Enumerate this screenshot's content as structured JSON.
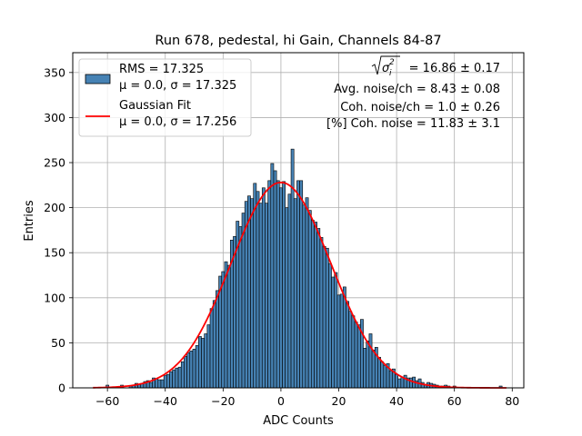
{
  "chart_data": {
    "type": "bar",
    "title": "Run 678, pedestal, hi Gain, Channels 84-87",
    "xlabel": "ADC Counts",
    "ylabel": "Entries",
    "xlim": [
      -72,
      84
    ],
    "ylim": [
      0,
      372
    ],
    "xticks": [
      -60,
      -40,
      -20,
      0,
      20,
      40,
      60,
      80
    ],
    "yticks": [
      0,
      50,
      100,
      150,
      200,
      250,
      300,
      350
    ],
    "grid": true,
    "bin_width": 1,
    "colors": {
      "hist_fill": "#4682b4",
      "hist_edge": "#000000",
      "fit_line": "#ff0000"
    },
    "histogram": {
      "legend_lines": [
        "RMS = 17.325",
        "μ = 0.0, σ = 17.325"
      ],
      "bin_centers": [
        -60,
        -55,
        -52,
        -51,
        -50,
        -49,
        -48,
        -47,
        -46,
        -45,
        -44,
        -43,
        -42,
        -41,
        -40,
        -39,
        -38,
        -37,
        -36,
        -35,
        -34,
        -33,
        -32,
        -31,
        -30,
        -29,
        -28,
        -27,
        -26,
        -25,
        -24,
        -23,
        -22,
        -21,
        -20,
        -19,
        -18,
        -17,
        -16,
        -15,
        -14,
        -13,
        -12,
        -11,
        -10,
        -9,
        -8,
        -7,
        -6,
        -5,
        -4,
        -3,
        -2,
        -1,
        0,
        1,
        2,
        3,
        4,
        5,
        6,
        7,
        8,
        9,
        10,
        11,
        12,
        13,
        14,
        15,
        16,
        17,
        18,
        19,
        20,
        21,
        22,
        23,
        24,
        25,
        26,
        27,
        28,
        29,
        30,
        31,
        32,
        33,
        34,
        35,
        36,
        37,
        38,
        39,
        40,
        41,
        42,
        43,
        44,
        45,
        46,
        47,
        48,
        49,
        50,
        51,
        52,
        53,
        54,
        55,
        56,
        57,
        58,
        60,
        76
      ],
      "counts": [
        3,
        3,
        2,
        3,
        5,
        4,
        5,
        7,
        8,
        6,
        11,
        10,
        9,
        9,
        14,
        15,
        18,
        20,
        22,
        23,
        29,
        35,
        39,
        41,
        43,
        47,
        57,
        55,
        60,
        70,
        88,
        97,
        108,
        124,
        129,
        140,
        136,
        164,
        168,
        185,
        179,
        194,
        207,
        213,
        210,
        227,
        218,
        205,
        222,
        205,
        230,
        249,
        241,
        230,
        222,
        229,
        200,
        215,
        265,
        210,
        230,
        230,
        203,
        211,
        197,
        186,
        184,
        177,
        167,
        157,
        155,
        138,
        123,
        128,
        103,
        104,
        112,
        96,
        85,
        80,
        73,
        70,
        76,
        44,
        52,
        60,
        42,
        45,
        34,
        29,
        25,
        27,
        19,
        21,
        15,
        10,
        12,
        14,
        11,
        11,
        12,
        8,
        10,
        6,
        4,
        6,
        5,
        4,
        3,
        2,
        2,
        3,
        2,
        2,
        2,
        3,
        3
      ]
    },
    "fit": {
      "legend_lines": [
        "Gaussian Fit",
        "μ = 0.0, σ = 17.256"
      ],
      "mu": 0.0,
      "sigma": 17.256,
      "amplitude": 228,
      "x_range": [
        -65,
        78
      ]
    },
    "annotations": {
      "line1_rest": " = 16.86 ± 0.17",
      "line2": "Avg. noise/ch = 8.43 ± 0.08",
      "line3": "Coh. noise/ch = 1.0 ± 0.26",
      "line4": "[%] Coh. noise = 11.83 ± 3.1"
    }
  }
}
